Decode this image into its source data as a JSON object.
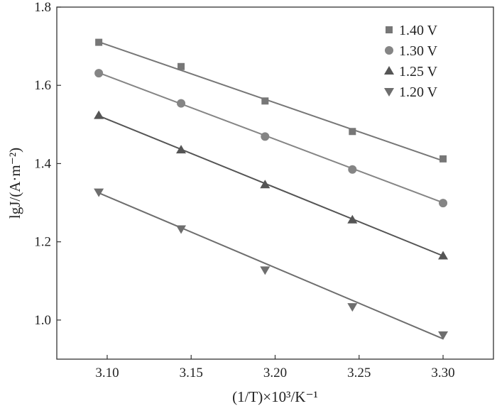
{
  "chart_data": {
    "type": "scatter",
    "title": "",
    "xlabel": "(1/T)×10³/K⁻¹",
    "ylabel": "lgJ/(A·m⁻²)",
    "xlim": [
      3.07,
      3.33
    ],
    "ylim": [
      0.9,
      1.8
    ],
    "xticks": [
      3.1,
      3.15,
      3.2,
      3.25,
      3.3
    ],
    "xtick_labels": [
      "3.10",
      "3.15",
      "3.20",
      "3.25",
      "3.30"
    ],
    "yticks": [
      1.0,
      1.2,
      1.4,
      1.6,
      1.8
    ],
    "ytick_labels": [
      "1.0",
      "1.2",
      "1.4",
      "1.6",
      "1.8"
    ],
    "grid": false,
    "legend_position": "top-right",
    "series": [
      {
        "name": "1.40 V",
        "marker": "square",
        "color": "#777777",
        "x": [
          3.095,
          3.144,
          3.194,
          3.246,
          3.3
        ],
        "y": [
          1.71,
          1.648,
          1.56,
          1.482,
          1.412
        ],
        "fit": [
          [
            3.095,
            1.711
          ],
          [
            3.3,
            1.407
          ]
        ]
      },
      {
        "name": "1.30 V",
        "marker": "circle",
        "color": "#858585",
        "x": [
          3.095,
          3.144,
          3.194,
          3.246,
          3.3
        ],
        "y": [
          1.631,
          1.554,
          1.469,
          1.385,
          1.299
        ],
        "fit": [
          [
            3.095,
            1.632
          ],
          [
            3.3,
            1.3
          ]
        ]
      },
      {
        "name": "1.25 V",
        "marker": "triangle-up",
        "color": "#555555",
        "x": [
          3.095,
          3.144,
          3.194,
          3.246,
          3.3
        ],
        "y": [
          1.523,
          1.435,
          1.346,
          1.256,
          1.164
        ],
        "fit": [
          [
            3.095,
            1.522
          ],
          [
            3.3,
            1.164
          ]
        ]
      },
      {
        "name": "1.20 V",
        "marker": "triangle-down",
        "color": "#6e6e6e",
        "x": [
          3.095,
          3.144,
          3.194,
          3.246,
          3.3
        ],
        "y": [
          1.327,
          1.233,
          1.128,
          1.034,
          0.962
        ],
        "fit": [
          [
            3.095,
            1.325
          ],
          [
            3.3,
            0.952
          ]
        ]
      }
    ]
  }
}
